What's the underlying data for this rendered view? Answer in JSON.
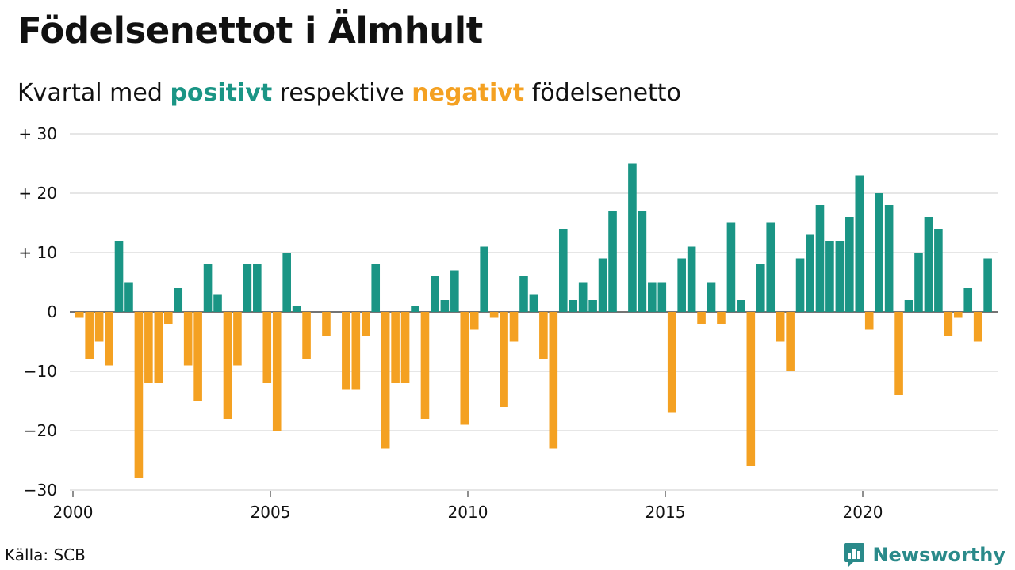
{
  "title": "Födelsenettot i Älmhult",
  "subtitle": {
    "prefix": "Kvartal med",
    "positive": "positivt",
    "middle": "respektive",
    "negative": "negativt",
    "suffix": "födelsenetto"
  },
  "source": "Källa: SCB",
  "brand": "Newsworthy",
  "colors": {
    "positive": "#1a9585",
    "negative": "#f4a122",
    "grid": "#dddddd",
    "brand": "#2a8a8a"
  },
  "chart_data": {
    "type": "bar",
    "x_start": "2000-Q1",
    "x_end": "2023-Q1",
    "xticks": [
      "2000",
      "2005",
      "2010",
      "2015",
      "2020"
    ],
    "yticks": [
      "+ 30",
      "+ 20",
      "+ 10",
      "0",
      "−10",
      "−20",
      "−30"
    ],
    "ylim": [
      -30,
      30
    ],
    "grid": true,
    "values": [
      -1,
      -8,
      -5,
      -9,
      12,
      5,
      -28,
      -12,
      -12,
      -2,
      4,
      -9,
      -15,
      8,
      3,
      -18,
      -9,
      8,
      8,
      -12,
      -20,
      10,
      1,
      -8,
      0,
      -4,
      0,
      -13,
      -13,
      -4,
      8,
      -23,
      -12,
      -12,
      1,
      -18,
      6,
      2,
      7,
      -19,
      -3,
      11,
      -1,
      -16,
      -5,
      6,
      3,
      -8,
      -23,
      14,
      2,
      5,
      2,
      9,
      17,
      0,
      25,
      17,
      5,
      5,
      -17,
      9,
      11,
      -2,
      5,
      -2,
      15,
      2,
      -26,
      8,
      15,
      -5,
      -10,
      9,
      13,
      18,
      12,
      12,
      16,
      23,
      -3,
      20,
      18,
      -14,
      2,
      10,
      16,
      14,
      -4,
      -1,
      4,
      -5,
      9
    ]
  }
}
